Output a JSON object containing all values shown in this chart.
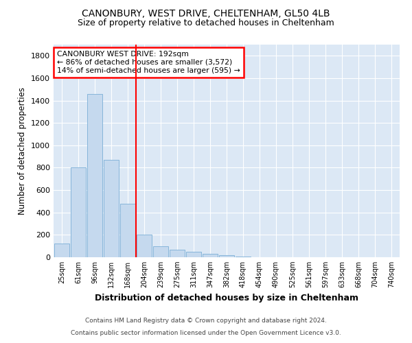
{
  "title": "CANONBURY, WEST DRIVE, CHELTENHAM, GL50 4LB",
  "subtitle": "Size of property relative to detached houses in Cheltenham",
  "xlabel": "Distribution of detached houses by size in Cheltenham",
  "ylabel": "Number of detached properties",
  "categories": [
    "25sqm",
    "61sqm",
    "96sqm",
    "132sqm",
    "168sqm",
    "204sqm",
    "239sqm",
    "275sqm",
    "311sqm",
    "347sqm",
    "382sqm",
    "418sqm",
    "454sqm",
    "490sqm",
    "525sqm",
    "561sqm",
    "597sqm",
    "633sqm",
    "668sqm",
    "704sqm",
    "740sqm"
  ],
  "values": [
    120,
    800,
    1460,
    870,
    480,
    200,
    100,
    65,
    50,
    30,
    20,
    5,
    3,
    3,
    3,
    2,
    2,
    1,
    1,
    1,
    1
  ],
  "bar_color": "#c5d9ee",
  "bar_edge_color": "#7aaed6",
  "vline_color": "red",
  "vline_pos": 4.5,
  "annotation_text": "CANONBURY WEST DRIVE: 192sqm\n← 86% of detached houses are smaller (3,572)\n14% of semi-detached houses are larger (595) →",
  "ylim": [
    0,
    1900
  ],
  "yticks": [
    0,
    200,
    400,
    600,
    800,
    1000,
    1200,
    1400,
    1600,
    1800
  ],
  "footnote_line1": "Contains HM Land Registry data © Crown copyright and database right 2024.",
  "footnote_line2": "Contains public sector information licensed under the Open Government Licence v3.0.",
  "bg_color": "#dce8f5",
  "figsize": [
    6.0,
    5.0
  ],
  "dpi": 100
}
